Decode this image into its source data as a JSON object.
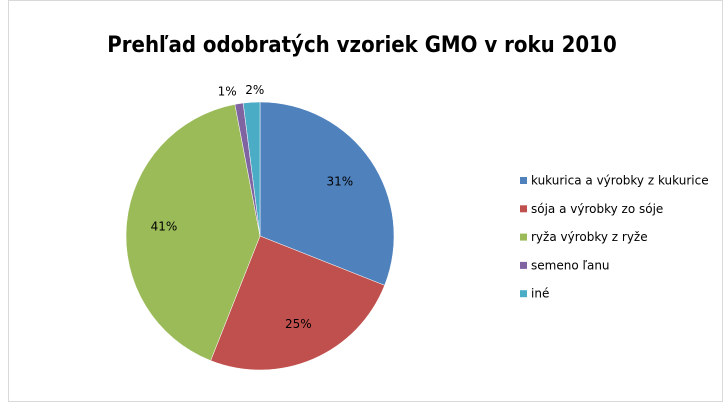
{
  "chart_data": {
    "type": "pie",
    "title": "Prehľad odobratých vzoriek GMO v roku 2010",
    "categories": [
      "kukurica a výrobky z kukurice",
      "sója a výrobky zo sóje",
      "ryža výrobky z ryže",
      "semeno ľanu",
      "iné"
    ],
    "values": [
      31,
      25,
      41,
      1,
      2
    ],
    "value_labels": [
      "31%",
      "25%",
      "41%",
      "1%",
      "2%"
    ],
    "colors": [
      "#4f81bd",
      "#c0504d",
      "#9bbb59",
      "#8064a2",
      "#4bacc6"
    ],
    "legend": "right"
  }
}
